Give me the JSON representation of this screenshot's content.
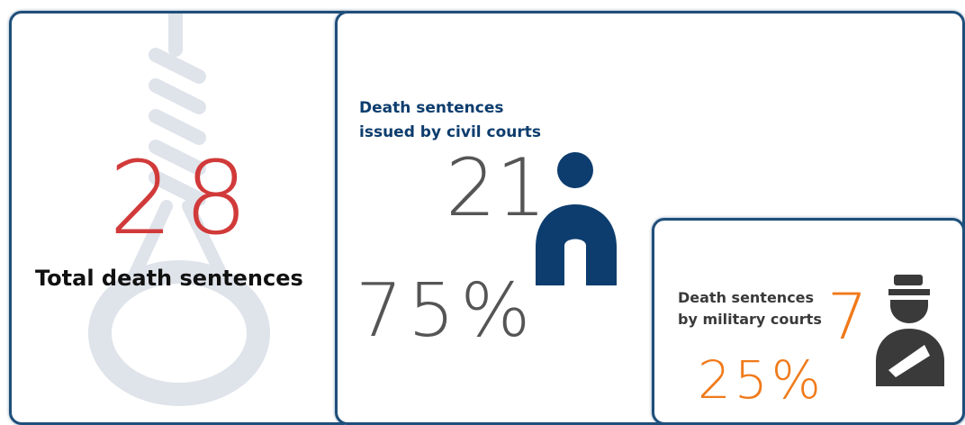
{
  "colors": {
    "border": "#1f4f7a",
    "total_red": "#d13a3a",
    "civil_gray": "#555555",
    "civil_blue": "#0d3d6e",
    "military_orange": "#f07a1a",
    "military_gray": "#3a3a3a",
    "noose_gray": "#dfe3ea"
  },
  "total": {
    "number": "28",
    "label": "Total death sentences",
    "icon": "noose-icon"
  },
  "civil": {
    "label_line1": "Death sentences",
    "label_line2": "issued by civil courts",
    "number": "21",
    "percent": "75%",
    "share": 0.75,
    "icon": "civilian-person-icon"
  },
  "military": {
    "label_line1": "Death sentences",
    "label_line2": "by military courts",
    "number": "7",
    "percent": "25%",
    "share": 0.25,
    "icon": "military-person-icon"
  }
}
